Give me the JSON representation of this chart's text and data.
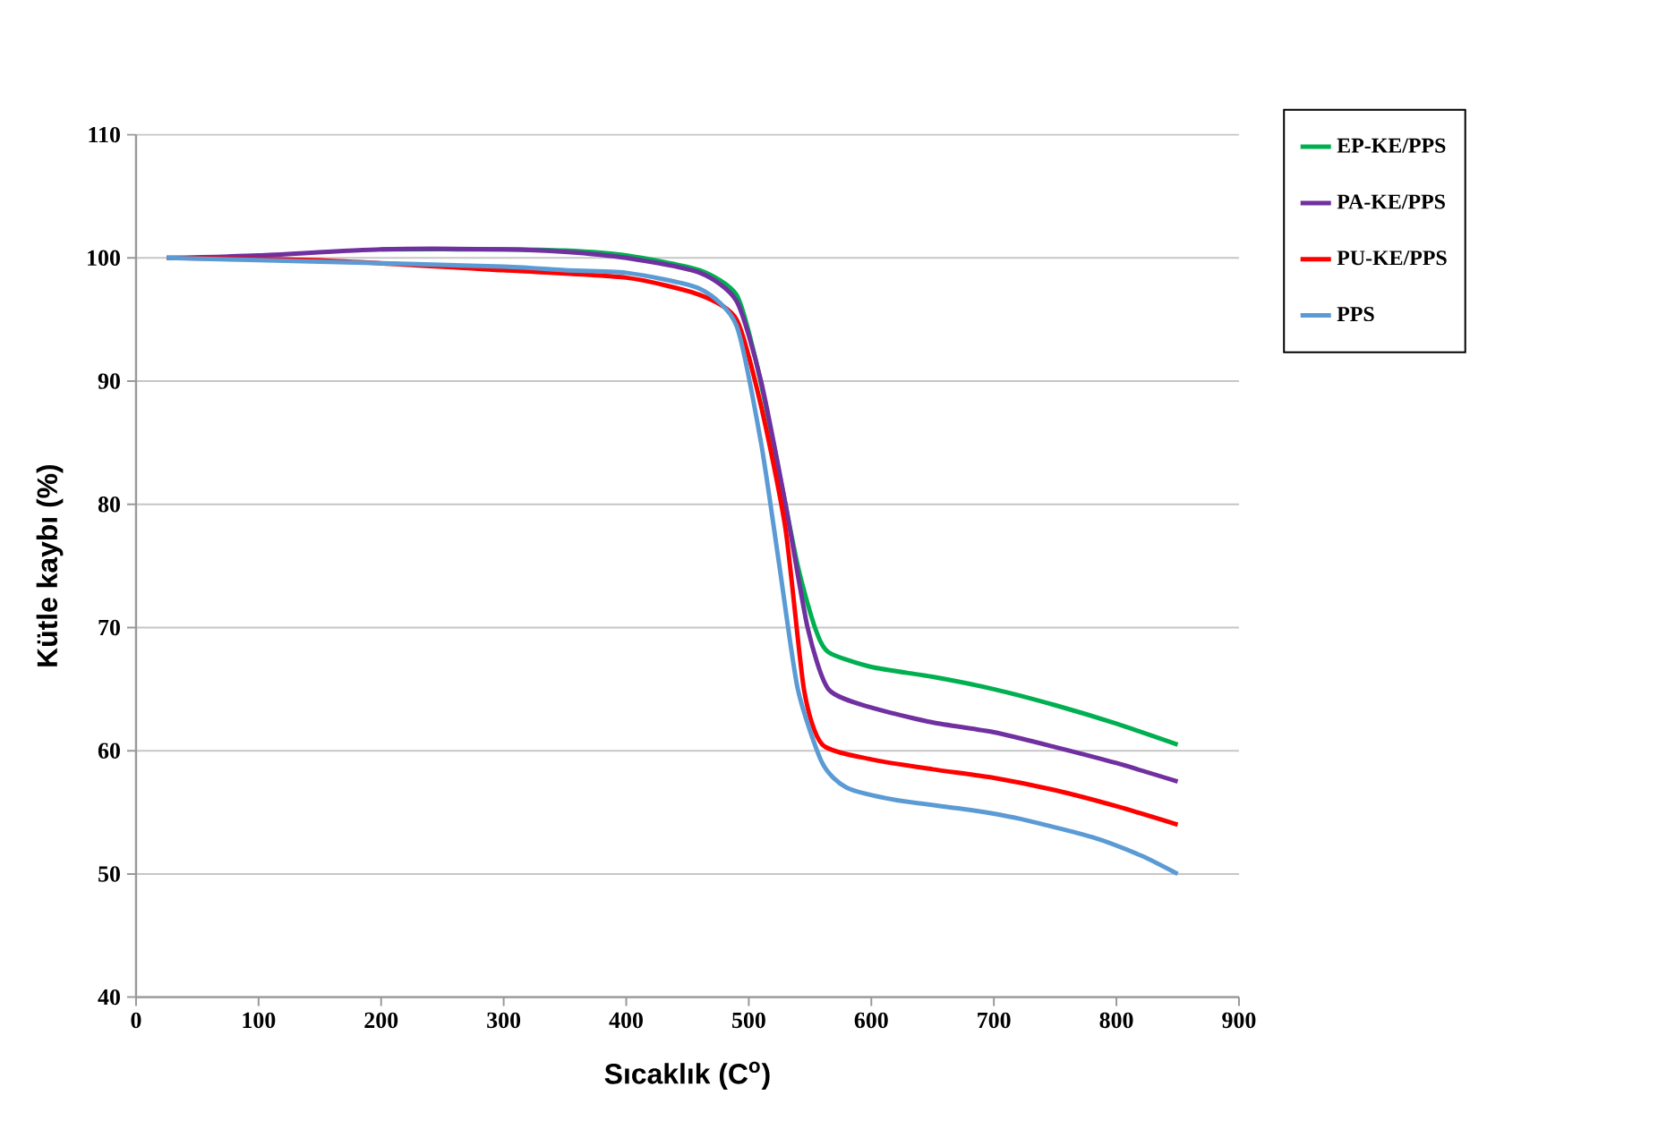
{
  "chart_data": {
    "type": "line",
    "xlabel": "Sıcaklık (C$^{o}$)",
    "ylabel": "Kütle kaybı (%)",
    "xlim": [
      0,
      900
    ],
    "xticks": [
      0,
      100,
      200,
      300,
      400,
      500,
      600,
      700,
      800,
      900
    ],
    "ylim": [
      40,
      110
    ],
    "yticks": [
      40,
      50,
      60,
      70,
      80,
      90,
      100,
      110
    ],
    "grid": "y",
    "legend": "right",
    "marker": "none",
    "line_style": "solid",
    "series": [
      {
        "name": "EP-KE/PPS",
        "color": "#00b050",
        "x": [
          200,
          300,
          350,
          400,
          460,
          490,
          505,
          520,
          540,
          554,
          565,
          600,
          650,
          700,
          750,
          800,
          850
        ],
        "values": [
          100.7,
          100.7,
          100.6,
          100.2,
          99,
          97,
          92,
          85,
          75,
          70,
          68,
          66.8,
          66,
          65,
          63.7,
          62.2,
          60.5
        ]
      },
      {
        "name": "PA-KE/PPS",
        "color": "#7030a0",
        "x": [
          25,
          100,
          200,
          300,
          350,
          400,
          460,
          490,
          510,
          530,
          548,
          565,
          600,
          650,
          700,
          750,
          800,
          850
        ],
        "values": [
          100,
          100.2,
          100.7,
          100.7,
          100.5,
          100,
          98.8,
          96.5,
          90,
          80,
          70,
          65,
          63.5,
          62.3,
          61.5,
          60.3,
          59,
          57.5
        ]
      },
      {
        "name": "PU-KE/PPS",
        "color": "#ff0000",
        "x": [
          25,
          150,
          300,
          400,
          460,
          490,
          510,
          530,
          545,
          560,
          600,
          650,
          700,
          750,
          800,
          850
        ],
        "values": [
          100,
          99.8,
          99.0,
          98.4,
          97.0,
          95,
          88,
          78,
          65,
          60.5,
          59.3,
          58.5,
          57.8,
          56.8,
          55.5,
          54
        ]
      },
      {
        "name": "PPS",
        "color": "#5b9bd5",
        "x": [
          25,
          150,
          300,
          350,
          400,
          460,
          490,
          510,
          525,
          540,
          560,
          580,
          620,
          680,
          720,
          780,
          820,
          850
        ],
        "values": [
          100,
          99.7,
          99.3,
          99,
          98.8,
          97.5,
          94.5,
          85,
          75,
          65,
          59,
          57,
          56,
          55.2,
          54.5,
          53,
          51.5,
          50
        ]
      }
    ]
  }
}
